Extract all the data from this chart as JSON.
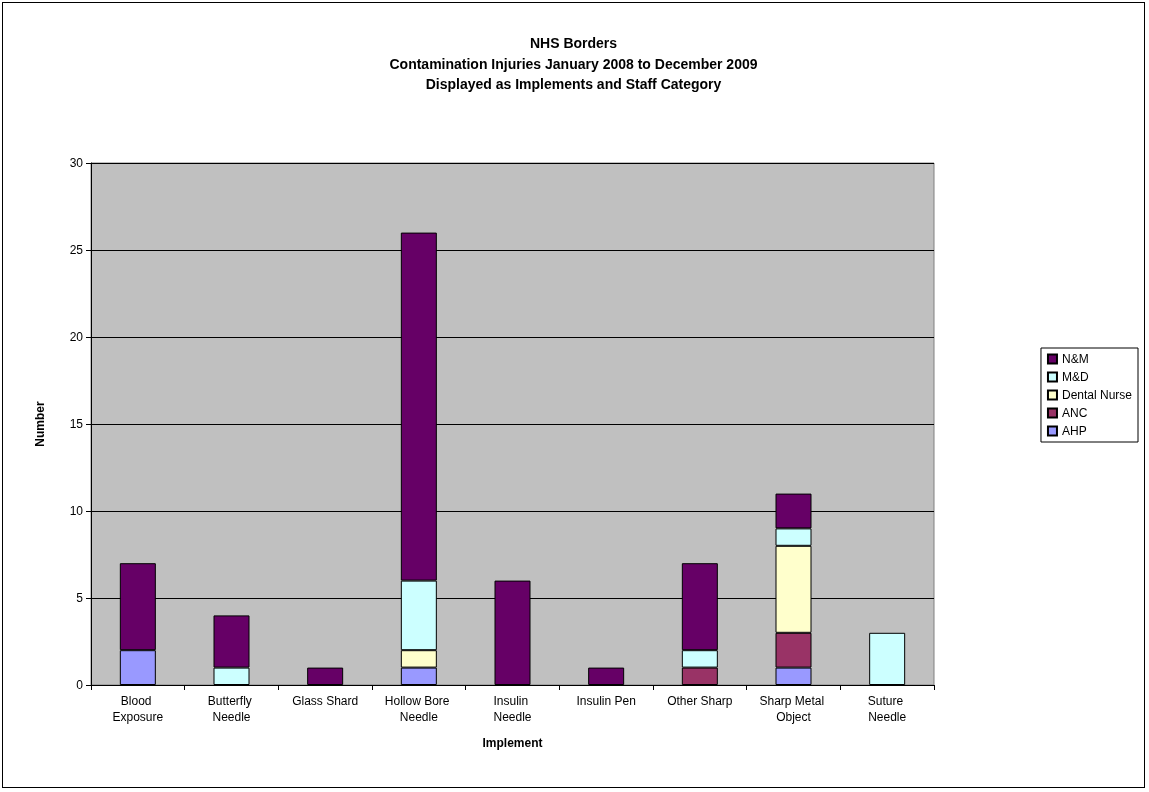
{
  "chart_data": {
    "type": "bar",
    "title": "NHS Borders",
    "subtitle": "Contamination Injuries January 2008 to December 2009\nDisplayed as Implements and Staff Category",
    "xlabel": "Implement",
    "ylabel": "Number",
    "categories": [
      "Blood Exposure",
      "Butterfly Needle",
      "Glass Shard",
      "Hollow Bore Needle",
      "Insulin Needle",
      "Insulin Pen",
      "Other Sharp",
      "Sharp Metal Object",
      "Suture Needle"
    ],
    "stacked": true,
    "series": [
      {
        "name": "AHP",
        "color": "#9999ff",
        "values": [
          2,
          0,
          0,
          1,
          0,
          0,
          0,
          1,
          0
        ]
      },
      {
        "name": "ANC",
        "color": "#993366",
        "values": [
          0,
          0,
          0,
          0,
          0,
          0,
          1,
          2,
          0
        ]
      },
      {
        "name": "Dental Nurse",
        "color": "#ffffcc",
        "values": [
          0,
          0,
          0,
          1,
          0,
          0,
          0,
          5,
          0
        ]
      },
      {
        "name": "M&D",
        "color": "#ccffff",
        "values": [
          0,
          1,
          0,
          4,
          0,
          0,
          1,
          1,
          3
        ]
      },
      {
        "name": "N&M",
        "color": "#660066",
        "values": [
          5,
          3,
          1,
          20,
          6,
          1,
          5,
          2,
          0
        ]
      }
    ],
    "ylim": [
      0,
      30
    ],
    "yticks": [
      0,
      5,
      10,
      15,
      20,
      25,
      30
    ],
    "grid": "y",
    "legend": "right"
  }
}
